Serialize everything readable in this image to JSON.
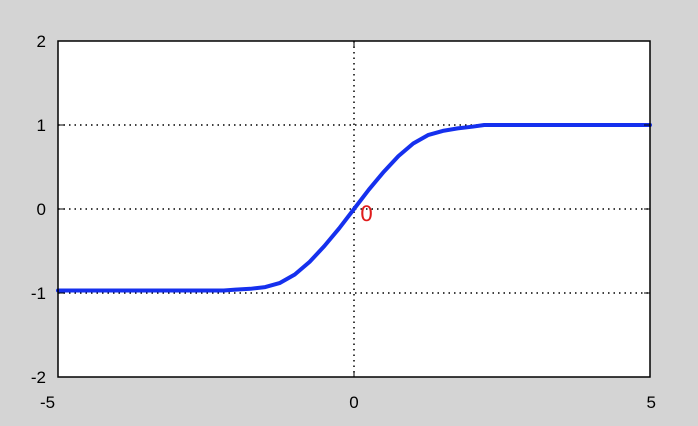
{
  "colors": {
    "figure_background": "#d4d4d4",
    "plot_background": "#ffffff",
    "axes": "#000000",
    "grid": "#000000",
    "line": "#1530ee",
    "annotation": "#e01b1b"
  },
  "chart_data": {
    "type": "line",
    "title": "",
    "xlabel": "",
    "ylabel": "",
    "xlim": [
      -5,
      5
    ],
    "ylim": [
      -2,
      2
    ],
    "grid": true,
    "grid_style": "dotted",
    "xticks": [
      -5,
      0,
      5
    ],
    "yticks": [
      -2,
      -1,
      0,
      1,
      2
    ],
    "xtick_labels": [
      "-5",
      "0",
      "5"
    ],
    "ytick_labels": [
      "-2",
      "-1",
      "0",
      "1",
      "2"
    ],
    "series": [
      {
        "x": [
          -5,
          -4,
          -3,
          -2.2,
          -2,
          -1.75,
          -1.5,
          -1.25,
          -1,
          -0.75,
          -0.5,
          -0.25,
          0,
          0.25,
          0.5,
          0.75,
          1,
          1.25,
          1.5,
          1.75,
          2,
          2.2,
          3,
          4,
          5
        ],
        "y": [
          -0.97,
          -0.97,
          -0.97,
          -0.97,
          -0.96,
          -0.95,
          -0.93,
          -0.88,
          -0.78,
          -0.63,
          -0.44,
          -0.23,
          0,
          0.23,
          0.44,
          0.63,
          0.78,
          0.88,
          0.93,
          0.96,
          0.98,
          1.0,
          1.0,
          1.0,
          1.0
        ]
      }
    ],
    "annotations": [
      {
        "text": "0",
        "x": 0.1,
        "y": -0.05
      }
    ]
  }
}
